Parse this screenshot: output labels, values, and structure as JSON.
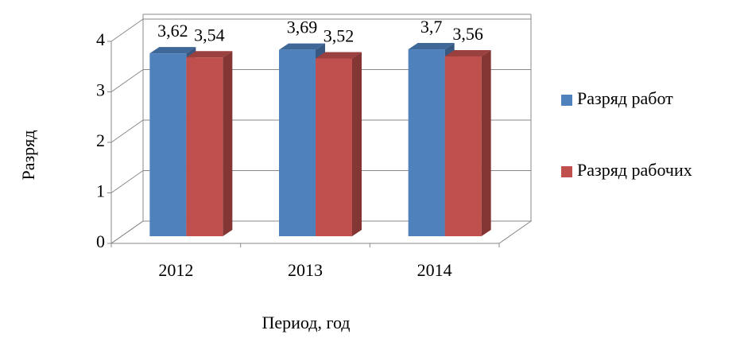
{
  "chart_data": {
    "type": "bar3d",
    "categories": [
      "2012",
      "2013",
      "2014"
    ],
    "series": [
      {
        "name": "Разряд работ",
        "color": "#4f81bd",
        "values": [
          3.62,
          3.69,
          3.7
        ],
        "value_labels": [
          "3,62",
          "3,69",
          "3,7"
        ]
      },
      {
        "name": "Разряд рабочих",
        "color": "#c0504d",
        "values": [
          3.54,
          3.52,
          3.56
        ],
        "value_labels": [
          "3,54",
          "3,52",
          "3,56"
        ]
      }
    ],
    "ylabel": "Разряд",
    "xlabel": "Период, год",
    "ylim": [
      0,
      4
    ],
    "yticks": [
      0,
      1,
      2,
      3,
      4
    ],
    "grid": true,
    "legend": "right"
  }
}
